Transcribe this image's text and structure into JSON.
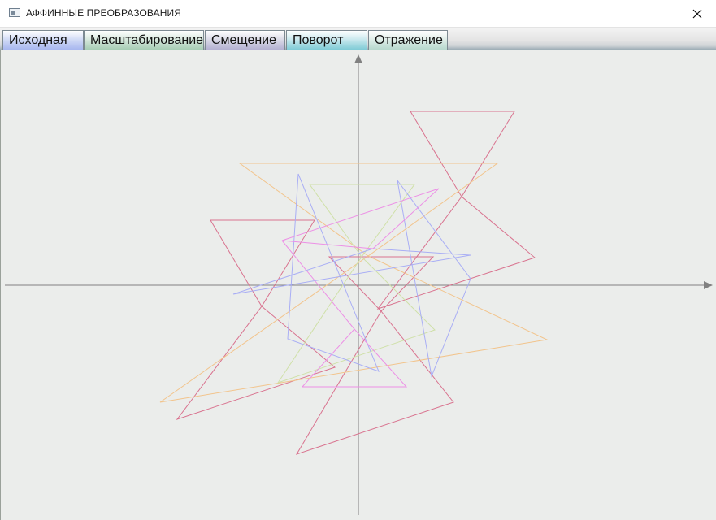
{
  "window": {
    "title": "АФФИННЫЕ ПРЕОБРАЗОВАНИЯ",
    "app_icon": "window-icon",
    "close_icon": "close-icon"
  },
  "tabs": [
    {
      "label": "Исходная"
    },
    {
      "label": "Масштабирование"
    },
    {
      "label": "Смещение"
    },
    {
      "label": "Поворот",
      "selected": true
    },
    {
      "label": "Отражение"
    }
  ],
  "colors": {
    "canvas_background": "#ebedeb",
    "axis": "#808080",
    "triangle_red": "#d9738f",
    "triangle_orange": "#f2c48c",
    "triangle_blue": "#a9aef5",
    "triangle_green": "#cfe0a8",
    "triangle_magenta": "#ec8fe6"
  }
}
